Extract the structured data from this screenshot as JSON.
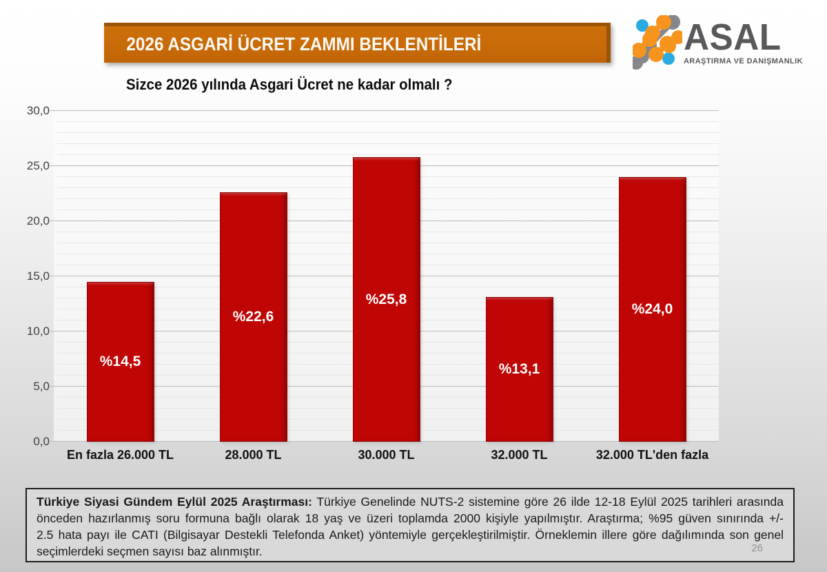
{
  "header": {
    "banner_title": "2026 ASGARİ ÜCRET ZAMMI BEKLENTİLERİ"
  },
  "logo": {
    "name": "ASAL",
    "subtitle": "ARAŞTIRMA VE DANIŞMANLIK",
    "icon": "asal-dots-slashes-icon",
    "colors": {
      "blue": "#29abe2",
      "orange": "#f7941e",
      "gray": "#85878a",
      "text_gray": "#58595b"
    }
  },
  "chart_data": {
    "type": "bar",
    "title": "Sizce 2026 yılında Asgari Ücret ne kadar olmalı ?",
    "categories": [
      "En fazla 26.000 TL",
      "28.000 TL",
      "30.000 TL",
      "32.000 TL",
      "32.000 TL'den fazla"
    ],
    "values": [
      14.5,
      22.6,
      25.8,
      13.1,
      24.0
    ],
    "bar_labels": [
      "%14,5",
      "%22,6",
      "%25,8",
      "%13,1",
      "%24,0"
    ],
    "xlabel": "",
    "ylabel": "",
    "ylim": [
      0,
      30
    ],
    "ytick_step": 5,
    "minor_tick_step": 1,
    "ytick_labels": [
      "0,0",
      "5,0",
      "10,0",
      "15,0",
      "20,0",
      "25,0",
      "30,0"
    ],
    "grid": "major and minor horizontal gridlines",
    "legend": "none",
    "bar_color": "#c00505"
  },
  "footnote": {
    "bold_intro": "Türkiye Siyasi Gündem Eylül 2025 Araştırması:",
    "line1_rest": "Türkiye Genelinde NUTS-2 sistemine göre 26 ilde 12-18 Eylül 2025 tarihleri arasında",
    "line2": "önceden hazırlanmış soru formuna bağlı olarak 18 yaş ve üzeri toplamda 2000 kişiyle yapılmıştır. Araştırma; %95 güven sınırında +/-",
    "line3": "2.5 hata payı ile CATI (Bilgisayar Destekli Telefonda Anket) yöntemiyle gerçekleştirilmiştir. Örneklemin illere göre dağılımında son genel",
    "line4": "seçimlerdeki seçmen sayısı baz alınmıştır."
  },
  "page_number": "26",
  "colors": {
    "banner_orange": "#c76a08",
    "banner_border": "#99540a",
    "bar_red": "#c00505",
    "major_grid": "#bdbdbd",
    "minor_grid": "#e6e6e6"
  }
}
